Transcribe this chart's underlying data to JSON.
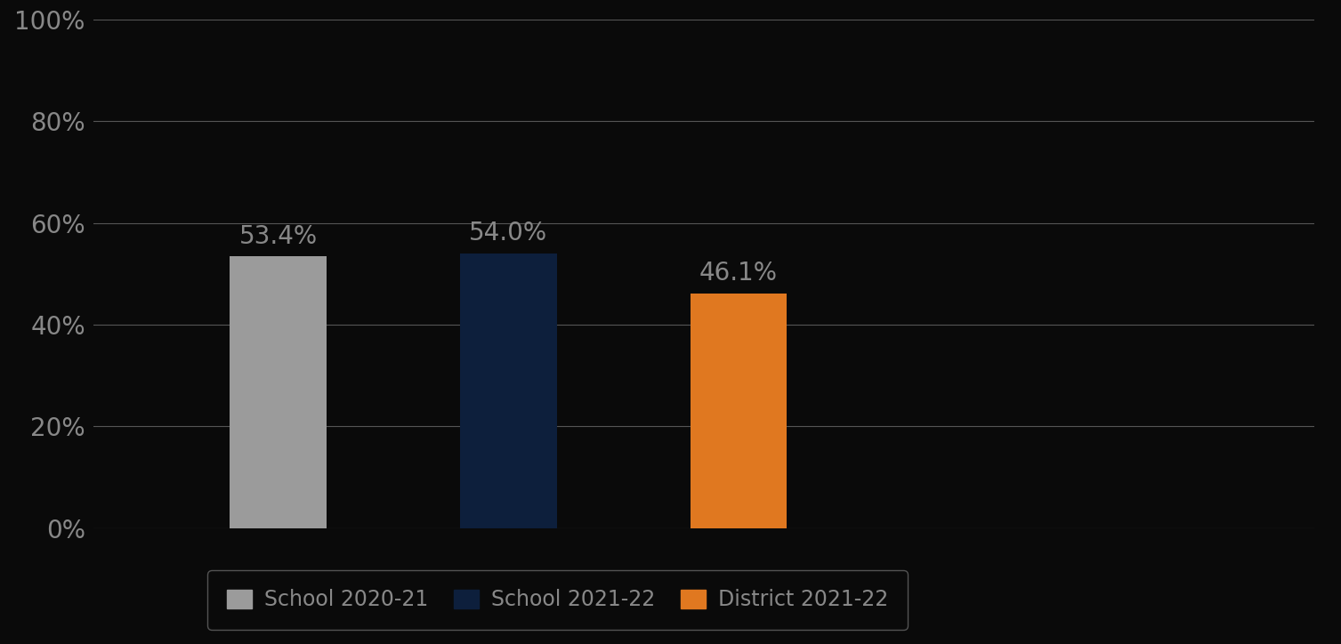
{
  "categories": [
    "School 2020-21",
    "School 2021-22",
    "District 2021-22"
  ],
  "values": [
    53.4,
    54.0,
    46.1
  ],
  "bar_colors": [
    "#9b9b9b",
    "#0d1f3c",
    "#e07820"
  ],
  "value_labels": [
    "53.4%",
    "54.0%",
    "46.1%"
  ],
  "ylim": [
    0,
    100
  ],
  "yticks": [
    0,
    20,
    40,
    60,
    80,
    100
  ],
  "ytick_labels": [
    "0%",
    "20%",
    "40%",
    "60%",
    "80%",
    "100%"
  ],
  "background_color": "#0a0a0a",
  "grid_color": "#555555",
  "text_color": "#888888",
  "label_fontsize": 20,
  "tick_fontsize": 20,
  "legend_fontsize": 17,
  "bar_width": 0.42,
  "x_positions": [
    1,
    2,
    3
  ],
  "xlim": [
    0.2,
    5.5
  ]
}
